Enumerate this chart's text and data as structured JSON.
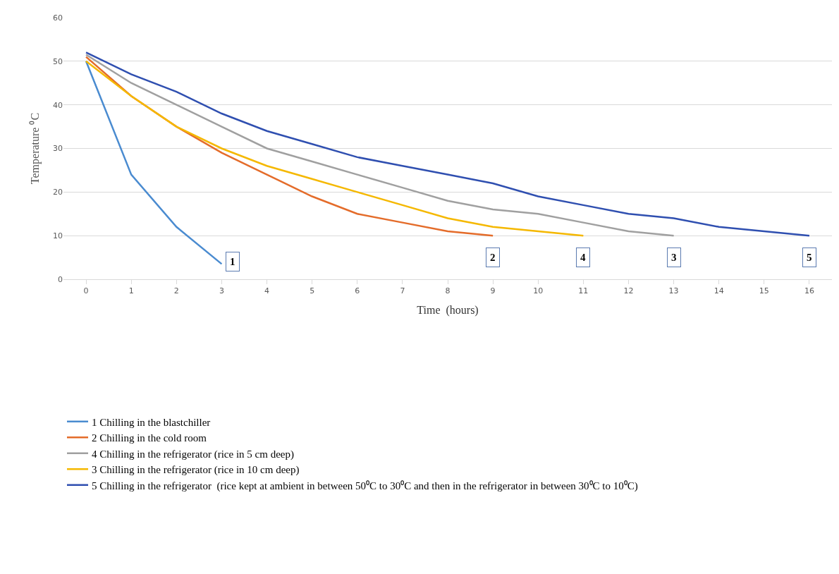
{
  "chart_data": {
    "type": "line",
    "xlabel": "Time  (hours)",
    "ylabel": "Temperature ⁰C",
    "x": [
      0,
      1,
      2,
      3,
      4,
      5,
      6,
      7,
      8,
      9,
      10,
      11,
      12,
      13,
      14,
      15,
      16
    ],
    "series": [
      {
        "name": "1 Chilling in the blastchiller",
        "color": "#4a8bd0",
        "x": [
          0,
          1,
          2,
          3
        ],
        "values": [
          50,
          24,
          12,
          3.5
        ]
      },
      {
        "name": "2 Chilling in the cold room",
        "color": "#e46c2a",
        "x": [
          0,
          1,
          2,
          3,
          4,
          5,
          6,
          7,
          8,
          9
        ],
        "values": [
          51,
          42,
          35,
          29,
          24,
          19,
          15,
          13,
          11,
          10
        ]
      },
      {
        "name": "4 Chilling in the refrigerator (rice in 5 cm deep)",
        "color": "#a0a0a0",
        "x": [
          0,
          1,
          2,
          3,
          4,
          5,
          6,
          7,
          8,
          9,
          10,
          11,
          12,
          13
        ],
        "values": [
          51.5,
          45,
          40,
          35,
          30,
          27,
          24,
          21,
          18,
          16,
          15,
          13,
          11,
          10
        ]
      },
      {
        "name": "3 Chilling in the refrigerator (rice in 10 cm deep)",
        "color": "#f5b800",
        "x": [
          0,
          1,
          2,
          3,
          4,
          5,
          6,
          7,
          8,
          9,
          10,
          11
        ],
        "values": [
          50,
          42,
          35,
          30,
          26,
          23,
          20,
          17,
          14,
          12,
          11,
          10
        ]
      },
      {
        "name": "5 Chilling in the refrigerator  (rice kept at ambient in between 50⁰C to 30⁰C and then in the refrigerator in between 30⁰C to 10⁰C)",
        "color": "#2f4fb0",
        "values": [
          52,
          47,
          43,
          38,
          34,
          31,
          28,
          26,
          24,
          22,
          19,
          17,
          15,
          14,
          12,
          11,
          10
        ]
      }
    ],
    "annotations": [
      {
        "text": "1",
        "x": 3.25,
        "y": 4
      },
      {
        "text": "2",
        "x": 9,
        "y": 5
      },
      {
        "text": "4",
        "x": 11,
        "y": 5
      },
      {
        "text": "3",
        "x": 13,
        "y": 5
      },
      {
        "text": "5",
        "x": 16,
        "y": 5
      }
    ],
    "xlim": [
      -0.5,
      16.5
    ],
    "xticks": [
      0,
      1,
      2,
      3,
      4,
      5,
      6,
      7,
      8,
      9,
      10,
      11,
      12,
      13,
      14,
      15,
      16
    ],
    "ylim": [
      0,
      60
    ],
    "yticks": [
      0,
      10,
      20,
      30,
      40,
      50,
      60
    ],
    "grid": "y",
    "legend": "bottom left",
    "marker": "none",
    "line_style": "solid"
  }
}
